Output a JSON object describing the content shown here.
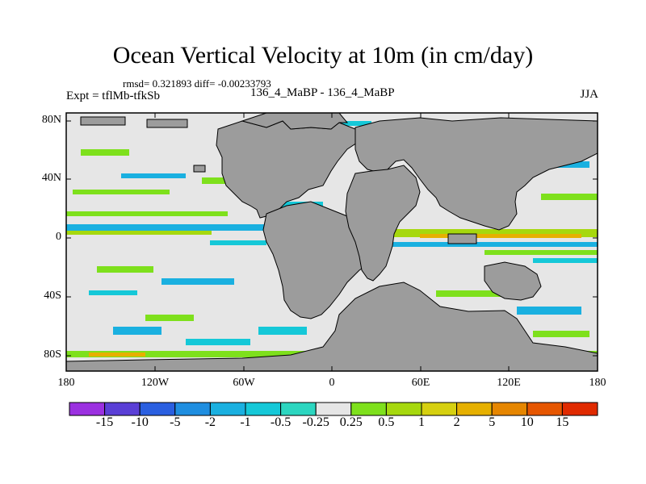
{
  "title": "Ocean Vertical Velocity at 10m (in cm/day)",
  "stats": "rmsd= 0.321893 diff= -0.00233793",
  "experiment": "Expt = tflMb-tfkSb",
  "runs": "136_4_MaBP - 136_4_MaBP",
  "season": "JJA",
  "lat_labels": [
    "80N",
    "40N",
    "0",
    "40S",
    "80S"
  ],
  "lon_labels": [
    "180",
    "120W",
    "60W",
    "0",
    "60E",
    "120E",
    "180"
  ],
  "colorbar": {
    "levels": [
      "-15",
      "-10",
      "-5",
      "-2",
      "-1",
      "-0.5",
      "-0.25",
      "0.25",
      "0.5",
      "1",
      "2",
      "5",
      "10",
      "15"
    ],
    "colors": [
      "#9b30e0",
      "#5a3fd6",
      "#2a5fe0",
      "#1f8ee0",
      "#1ab0e0",
      "#15c8d8",
      "#2cd6c0",
      "#e6e6e6",
      "#7ee01c",
      "#a6d80e",
      "#d6d010",
      "#e6b000",
      "#e68600",
      "#e65600",
      "#e02a00"
    ]
  },
  "colors": {
    "land": "#9c9c9c",
    "ocean": "#e6e6e6",
    "coast": "#000000"
  }
}
